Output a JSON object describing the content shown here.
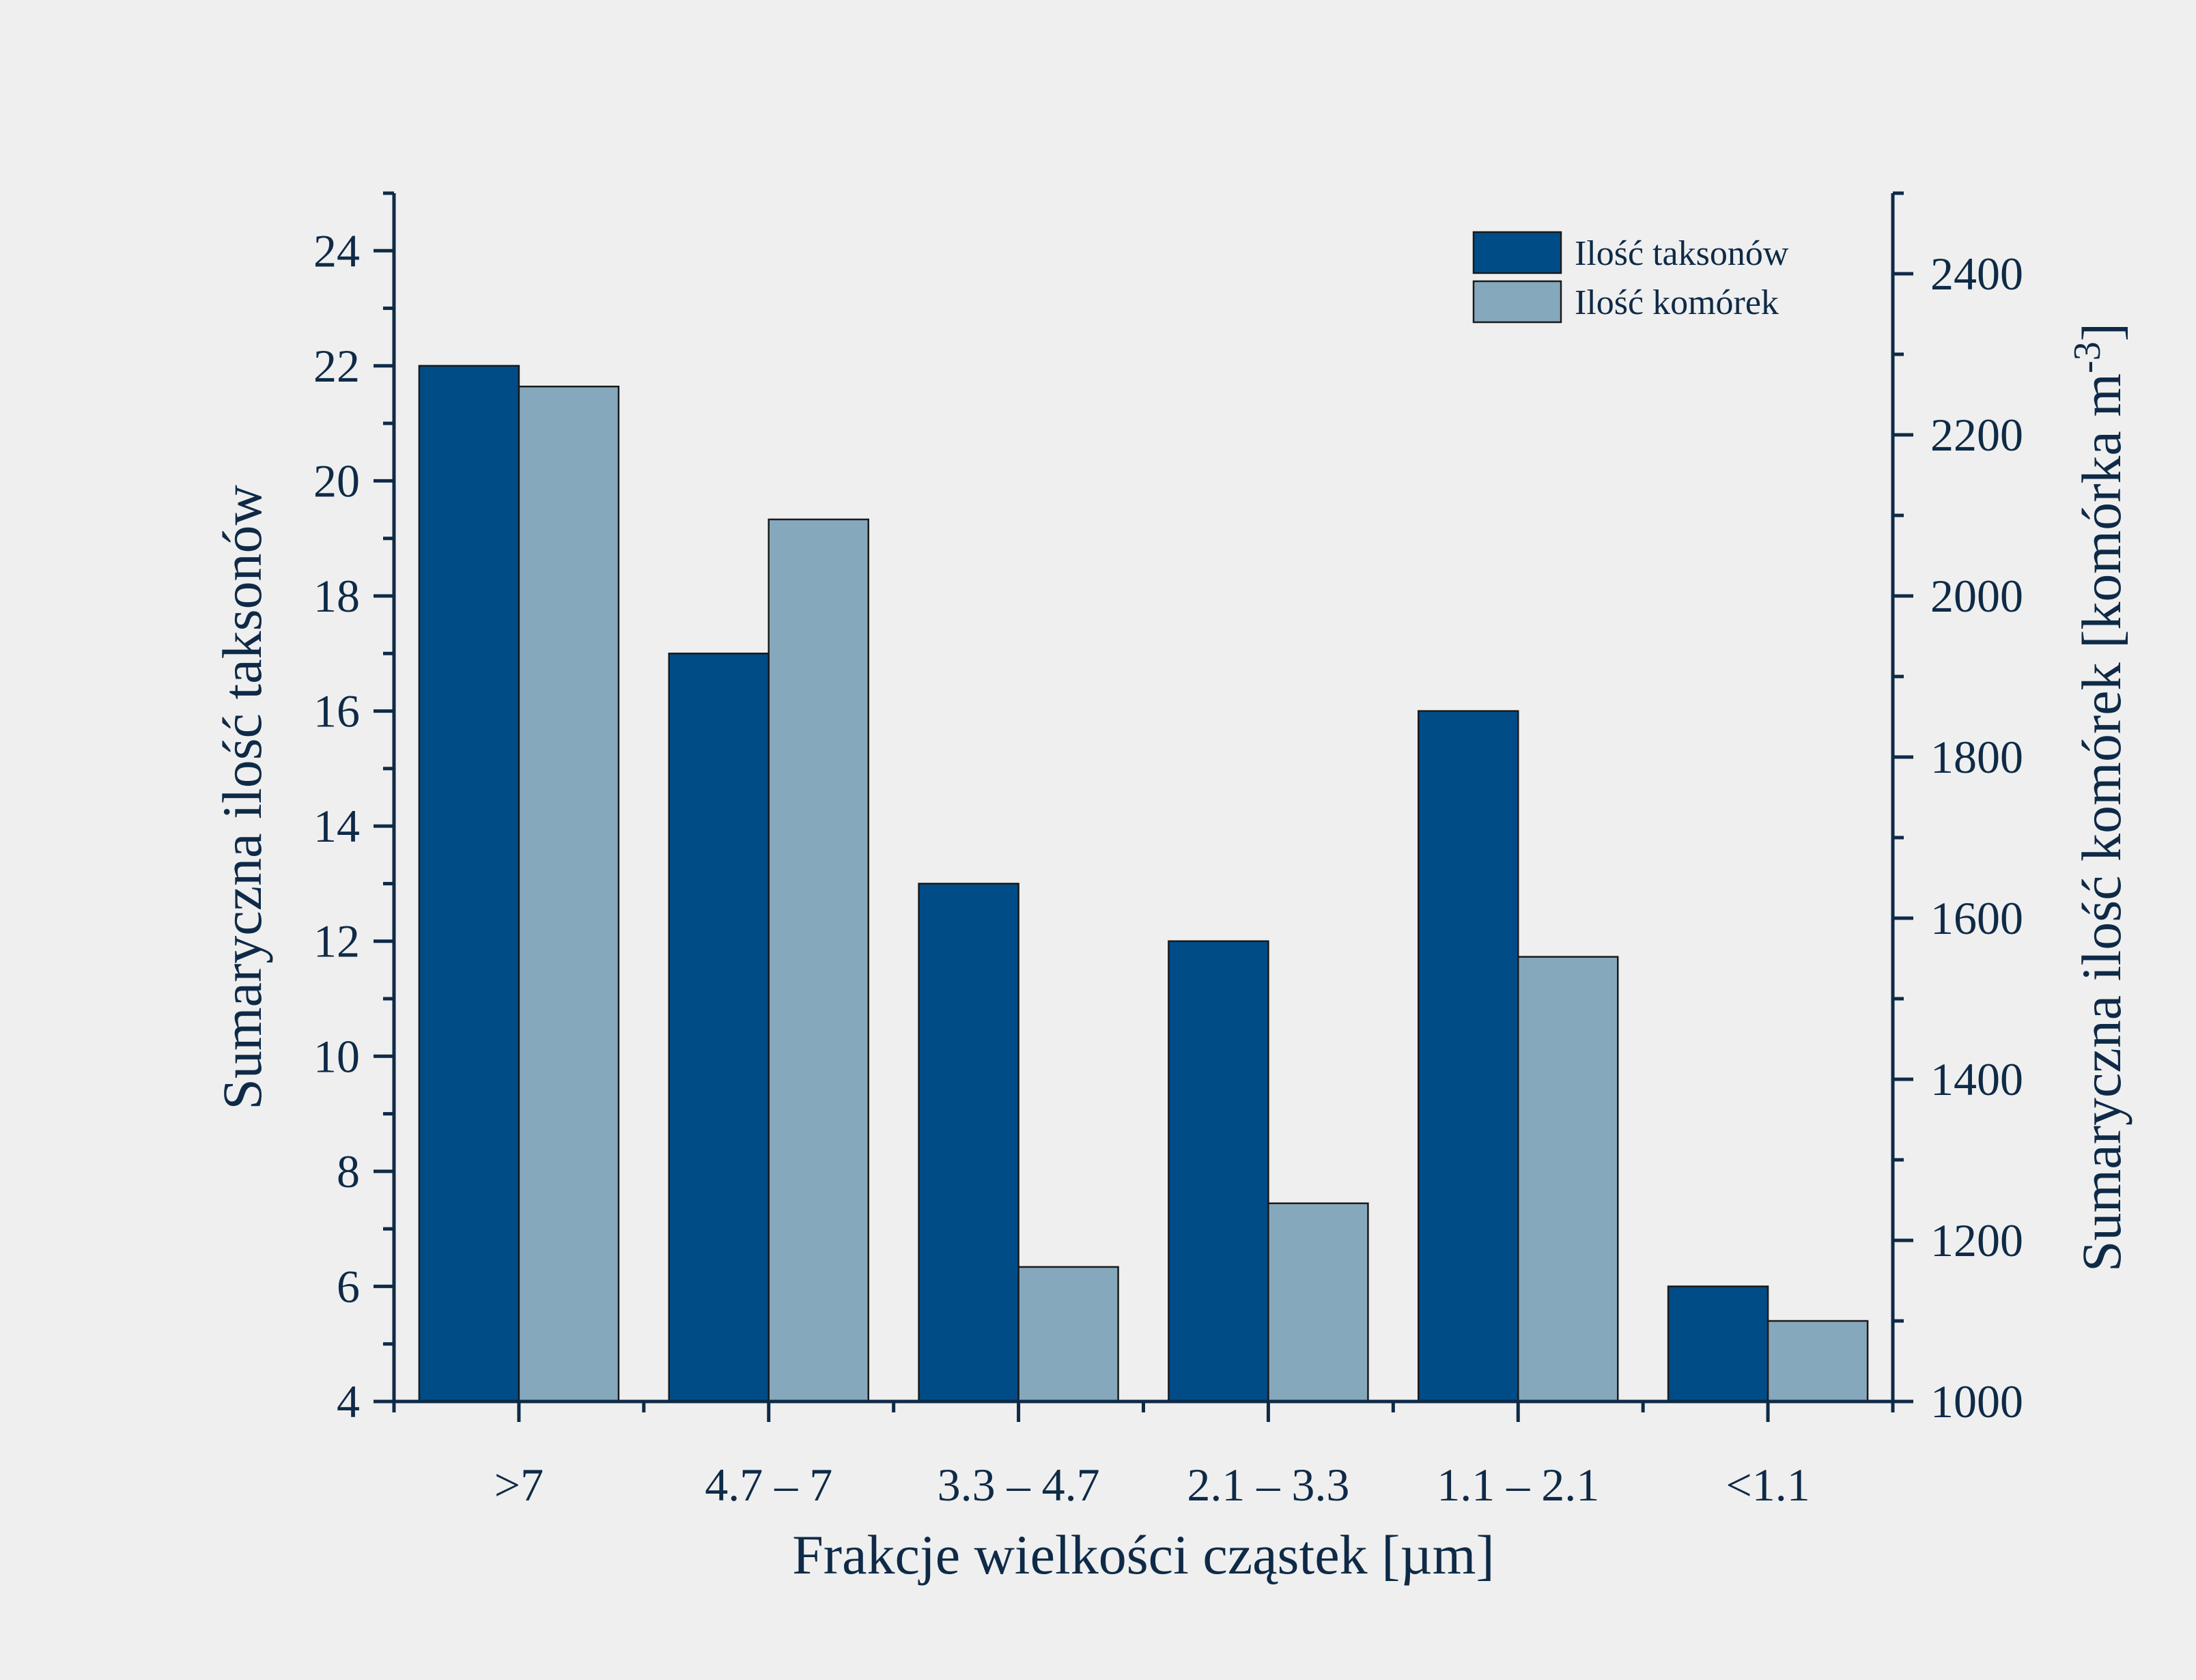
{
  "chart_data": {
    "type": "bar",
    "categories": [
      ">7",
      "4.7 – 7",
      "3.3 – 4.7",
      "2.1 – 3.3",
      "1.1 – 2.1",
      "<1.1"
    ],
    "series": [
      {
        "name": "Ilość taksonów",
        "axis": "left",
        "color": "#004c87",
        "values": [
          22,
          17,
          13,
          12,
          16,
          6
        ]
      },
      {
        "name": "Ilość komórek",
        "axis": "right",
        "color": "#86a8bd",
        "values": [
          2260,
          2095,
          1167,
          1246,
          1552,
          1100
        ]
      }
    ],
    "title": "",
    "xlabel": "Frakcje wielkości cząstek [µm]",
    "ylabel": "Sumaryczna ilość taksonów",
    "y2label": {
      "main": "Sumaryczna ilość komórek [komórka m",
      "sup": "-3",
      "close": "]"
    },
    "ylim": [
      4,
      25
    ],
    "y2lim": [
      1000,
      2500
    ],
    "yticks": [
      "4",
      "6",
      "8",
      "10",
      "12",
      "14",
      "16",
      "18",
      "20",
      "22",
      "24"
    ],
    "y2ticks": [
      "1000",
      "1200",
      "1400",
      "1600",
      "1800",
      "2000",
      "2200",
      "2400"
    ],
    "legend_position": "top-right",
    "grid": false
  }
}
